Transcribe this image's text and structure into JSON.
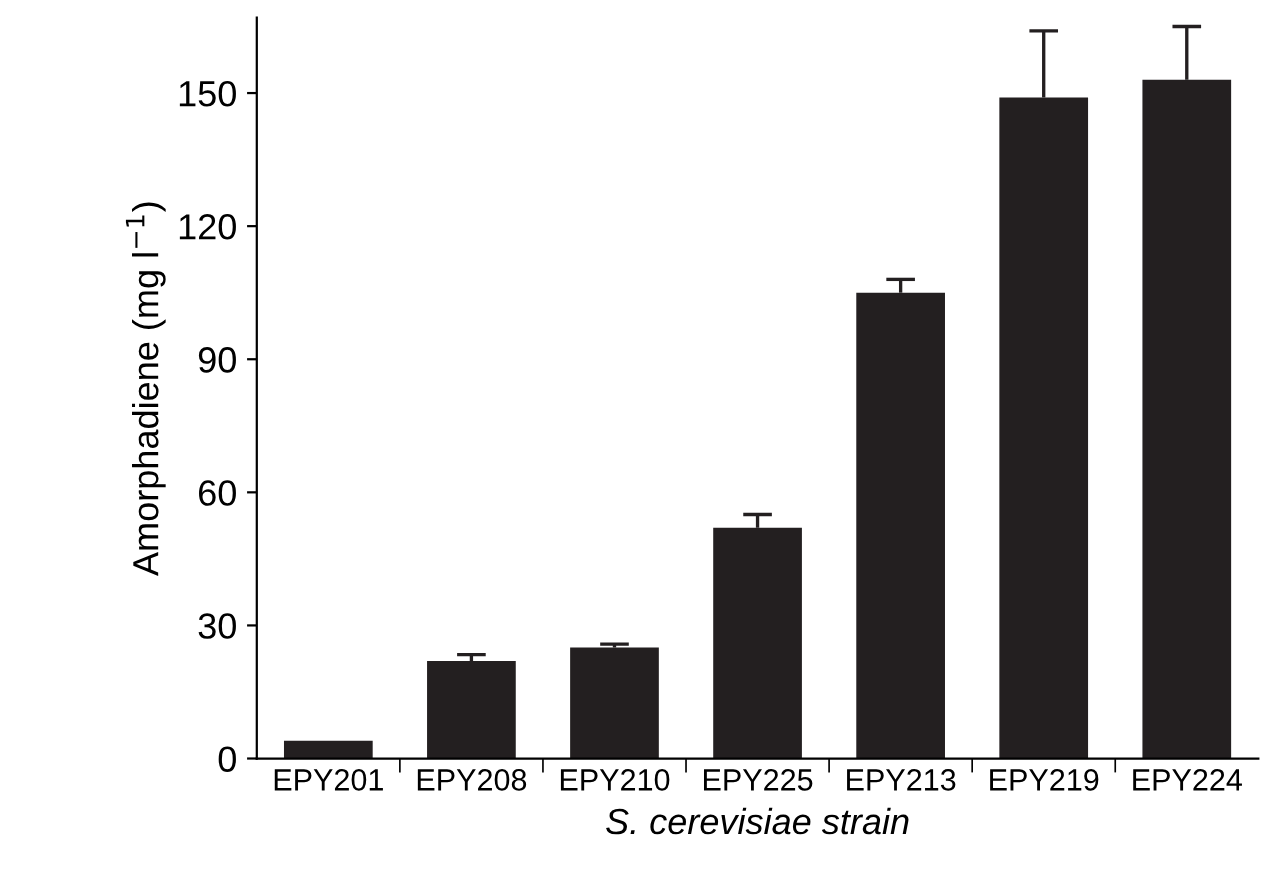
{
  "chart_data": {
    "type": "bar",
    "xlabel": "S. cerevisiae strain",
    "ylabel": "Amorphadiene (mg l$^{−1}$)",
    "categories": [
      "EPY201",
      "EPY208",
      "EPY210",
      "EPY225",
      "EPY213",
      "EPY219",
      "EPY224"
    ],
    "values": [
      4,
      22,
      25,
      52,
      105,
      149,
      153
    ],
    "errors": [
      null,
      [
        22,
        23.4
      ],
      [
        25,
        25.8
      ],
      [
        52,
        55
      ],
      [
        105,
        108
      ],
      [
        149,
        164
      ],
      [
        153,
        165
      ]
    ],
    "color": "#231f20",
    "ylim": [
      0,
      167
    ],
    "yticks": [
      0,
      30,
      60,
      90,
      120,
      150
    ],
    "grid": false
  }
}
